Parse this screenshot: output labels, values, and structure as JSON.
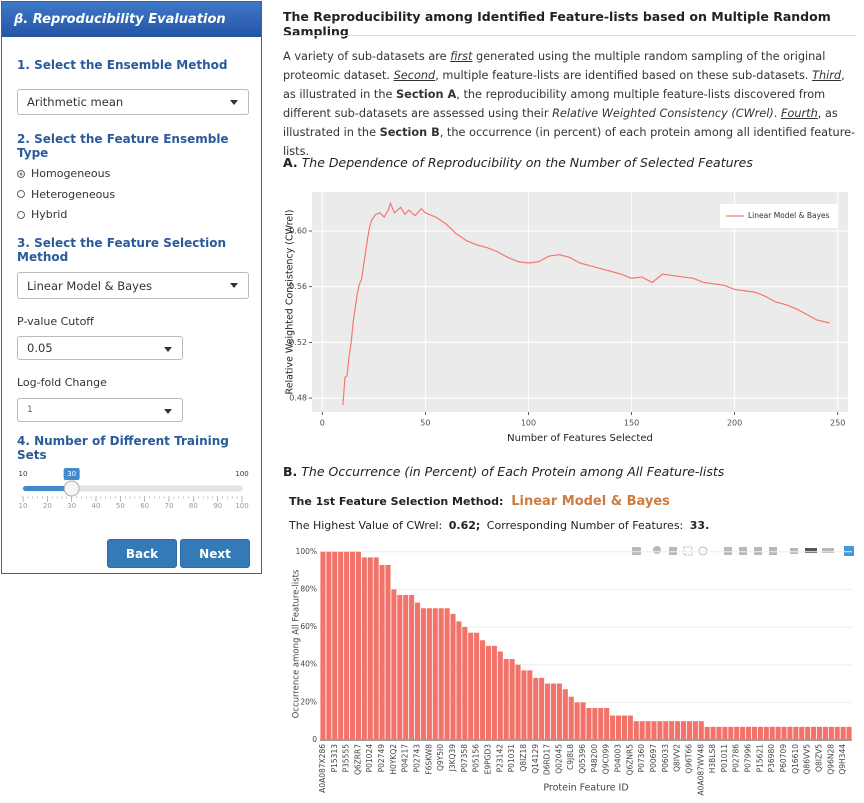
{
  "sidebar": {
    "header": "β. Reproducibility Evaluation",
    "step1": "1. Select the Ensemble Method",
    "ensemble_method": "Arithmetic mean",
    "step2": "2. Select the Feature Ensemble Type",
    "ensemble_types": [
      "Homogeneous",
      "Heterogeneous",
      "Hybrid"
    ],
    "ensemble_type_selected": 0,
    "step3": "3. Select the Feature Selection Method",
    "selection_method": "Linear Model & Bayes",
    "pvalue_label": "P-value Cutoff",
    "pvalue": "0.05",
    "logfold_label": "Log-fold Change",
    "logfold": "1",
    "step4": "4. Number of Different Training Sets",
    "slider": {
      "min": 10,
      "max": 100,
      "value": 30,
      "ticks": [
        10,
        20,
        30,
        40,
        50,
        60,
        70,
        80,
        90,
        100
      ]
    },
    "back": "Back",
    "next": "Next"
  },
  "main": {
    "title": "The Reproducibility among Identified Feature-lists based on Multiple Random Sampling",
    "paragraph": [
      {
        "text": "A variety of sub-datasets are "
      },
      {
        "text": "first",
        "style": "underline-italic"
      },
      {
        "text": " generated using the multiple random sampling of the original proteomic dataset. "
      },
      {
        "text": "Second",
        "style": "underline-italic"
      },
      {
        "text": ", multiple feature-lists are identified based on these sub-datasets. "
      },
      {
        "text": "Third",
        "style": "underline-italic"
      },
      {
        "text": ", as illustrated in the "
      },
      {
        "text": "Section A",
        "style": "bold"
      },
      {
        "text": ", the reproducibility among multiple feature-lists discovered from different sub-datasets are assessed using their "
      },
      {
        "text": "Relative Weighted Consistency (CWrel)",
        "style": "italic"
      },
      {
        "text": ". "
      },
      {
        "text": "Fourth",
        "style": "underline-italic"
      },
      {
        "text": ", as illustrated in the "
      },
      {
        "text": "Section B",
        "style": "bold"
      },
      {
        "text": ", the occurrence (in percent) of each protein among all identified feature-lists."
      }
    ],
    "section_a": {
      "label": "A.",
      "title": "The Dependence of Reproducibility on the Number of Selected Features"
    },
    "section_b": {
      "label": "B.",
      "title": "The Occurrence (in Percent) of Each Protein among All Feature-lists"
    },
    "method_label": "The 1st Feature Selection Method:",
    "method_value": "Linear Model & Bayes",
    "cwrel_label": "The Highest Value of CWrel:",
    "cwrel_value": "0.62;",
    "features_label": "Corresponding Number of Features:",
    "features_value": "33."
  },
  "chart_data": [
    {
      "type": "line",
      "xlabel": "Number of Features Selected",
      "ylabel": "Relative Weighted Consistency (CWrel)",
      "x": [
        10,
        11,
        12,
        13,
        14,
        15,
        16,
        17,
        18,
        19,
        20,
        21,
        22,
        23,
        24,
        26,
        28,
        30,
        32,
        33,
        35,
        38,
        40,
        42,
        45,
        48,
        50,
        55,
        60,
        65,
        70,
        75,
        80,
        85,
        90,
        95,
        100,
        105,
        110,
        115,
        120,
        125,
        130,
        135,
        140,
        145,
        150,
        155,
        160,
        165,
        170,
        175,
        180,
        185,
        190,
        195,
        200,
        205,
        210,
        215,
        220,
        225,
        230,
        235,
        240,
        246
      ],
      "series": [
        {
          "name": "Linear Model & Bayes",
          "color": "#f8766d",
          "values": [
            0.475,
            0.495,
            0.496,
            0.51,
            0.52,
            0.535,
            0.545,
            0.555,
            0.562,
            0.565,
            0.575,
            0.585,
            0.595,
            0.603,
            0.608,
            0.612,
            0.613,
            0.61,
            0.615,
            0.62,
            0.613,
            0.617,
            0.612,
            0.615,
            0.611,
            0.616,
            0.613,
            0.61,
            0.605,
            0.598,
            0.593,
            0.59,
            0.588,
            0.585,
            0.581,
            0.578,
            0.577,
            0.578,
            0.582,
            0.583,
            0.581,
            0.577,
            0.575,
            0.573,
            0.571,
            0.569,
            0.566,
            0.567,
            0.563,
            0.569,
            0.568,
            0.567,
            0.566,
            0.563,
            0.562,
            0.561,
            0.558,
            0.557,
            0.556,
            0.553,
            0.549,
            0.547,
            0.544,
            0.54,
            0.536,
            0.534
          ]
        }
      ],
      "xlim": [
        -5,
        255
      ],
      "xticks": [
        0,
        50,
        100,
        150,
        200,
        250
      ],
      "ylim": [
        0.47,
        0.628
      ],
      "yticks": [
        {
          "value": 0.48,
          "label": "0.48"
        },
        {
          "value": 0.52,
          "label": "0.52"
        },
        {
          "value": 0.56,
          "label": "0.56"
        },
        {
          "value": 0.6,
          "label": "0.60"
        }
      ],
      "grid": true,
      "legend": "top-right"
    },
    {
      "type": "bar",
      "xlabel": "Protein Feature ID",
      "ylabel": "Occurrence among All Feature-lists",
      "color": "#f3726a",
      "categories": [
        "A0A087X286",
        null,
        "P15313",
        null,
        "P35555",
        null,
        "Q6ZRR7",
        null,
        "P01024",
        null,
        "P02749",
        null,
        "H0YKQ2",
        null,
        "P04217",
        null,
        "P02743",
        null,
        "F6SKW8",
        null,
        "Q9Y5I0",
        null,
        "J3KQ39",
        null,
        "P07358",
        null,
        "P05156",
        null,
        "E9PGD3",
        null,
        "P23142",
        null,
        "P01031",
        null,
        "Q8IZ18",
        null,
        "Q14129",
        null,
        "D6RD17",
        null,
        "Q02045",
        null,
        "C9J8L8",
        null,
        "Q05396",
        null,
        "P48200",
        null,
        "Q9C099",
        null,
        "P04003",
        null,
        "Q6ZNR5",
        null,
        "P07360",
        null,
        "P00697",
        null,
        "P06033",
        null,
        "Q8IVV2",
        null,
        "Q96T66",
        null,
        "A0A087WV48",
        null,
        "H3BLS8",
        null,
        "P01011",
        null,
        "P02786",
        null,
        "P07996",
        null,
        "P15621",
        null,
        "P36980",
        null,
        "P60709",
        null,
        "Q16610",
        null,
        "Q86VV5",
        null,
        "Q8IZV5",
        null,
        "Q96N28",
        null,
        "Q9H344",
        null
      ],
      "values": [
        100,
        100,
        100,
        100,
        100,
        100,
        100,
        97,
        97,
        97,
        93,
        93,
        80,
        77,
        77,
        77,
        73,
        70,
        70,
        70,
        70,
        70,
        67,
        63,
        60,
        57,
        57,
        53,
        50,
        50,
        47,
        43,
        43,
        40,
        37,
        37,
        33,
        33,
        30,
        30,
        30,
        27,
        23,
        20,
        20,
        17,
        17,
        17,
        17,
        13,
        13,
        13,
        13,
        10,
        10,
        10,
        10,
        10,
        10,
        10,
        10,
        10,
        10,
        10,
        10,
        7,
        7,
        7,
        7,
        7,
        7,
        7,
        7,
        7,
        7,
        7,
        7,
        7,
        7,
        7,
        7,
        7,
        7,
        7,
        7,
        7,
        7,
        7,
        7,
        7
      ],
      "ylim": [
        0,
        102
      ],
      "yticks": [
        0,
        {
          "value": 20,
          "label": "20%"
        },
        {
          "value": 40,
          "label": "40%"
        },
        {
          "value": 60,
          "label": "60%"
        },
        {
          "value": 80,
          "label": "80%"
        },
        {
          "value": 100,
          "label": "100%"
        }
      ],
      "grid": true
    }
  ]
}
